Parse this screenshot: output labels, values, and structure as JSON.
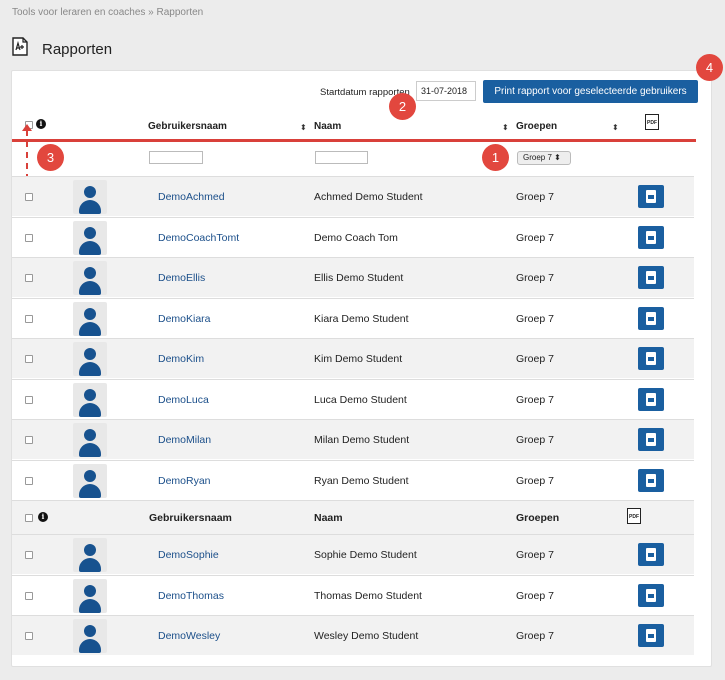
{
  "breadcrumb": "Tools voor leraren en coaches » Rapporten",
  "page_title": "Rapporten",
  "start_date": {
    "label": "Startdatum rapporten",
    "value": "31-07-2018"
  },
  "print_button": "Print rapport voor geselecteerde gebruikers",
  "headers": {
    "info": "i",
    "username": "Gebruikersnaam",
    "name": "Naam",
    "groups": "Groepen",
    "pdf": "PDF",
    "sort": "⬍"
  },
  "filters": {
    "group_selected": "Groep 7 ⬍"
  },
  "badges": [
    "1",
    "2",
    "3",
    "4"
  ],
  "rows": [
    {
      "username": "DemoAchmed",
      "name": "Achmed Demo Student",
      "group": "Groep 7"
    },
    {
      "username": "DemoCoachTomt",
      "name": "Demo Coach Tom",
      "group": "Groep 7"
    },
    {
      "username": "DemoEllis",
      "name": "Ellis Demo Student",
      "group": "Groep 7"
    },
    {
      "username": "DemoKiara",
      "name": "Kiara Demo Student",
      "group": "Groep 7"
    },
    {
      "username": "DemoKim",
      "name": "Kim Demo Student",
      "group": "Groep 7"
    },
    {
      "username": "DemoLuca",
      "name": "Luca Demo Student",
      "group": "Groep 7"
    },
    {
      "username": "DemoMilan",
      "name": "Milan Demo Student",
      "group": "Groep 7"
    },
    {
      "username": "DemoRyan",
      "name": "Ryan Demo Student",
      "group": "Groep 7"
    }
  ],
  "rows2": [
    {
      "username": "DemoSophie",
      "name": "Sophie Demo Student",
      "group": "Groep 7"
    },
    {
      "username": "DemoThomas",
      "name": "Thomas Demo Student",
      "group": "Groep 7"
    },
    {
      "username": "DemoWesley",
      "name": "Wesley Demo Student",
      "group": "Groep 7"
    }
  ],
  "colors": {
    "accent": "#1a5fa0",
    "badge": "#e2473e",
    "link": "#1b4f8a"
  },
  "icons": {
    "report": "report-document-icon",
    "pdf": "pdf-icon",
    "avatar": "user-avatar-icon"
  }
}
